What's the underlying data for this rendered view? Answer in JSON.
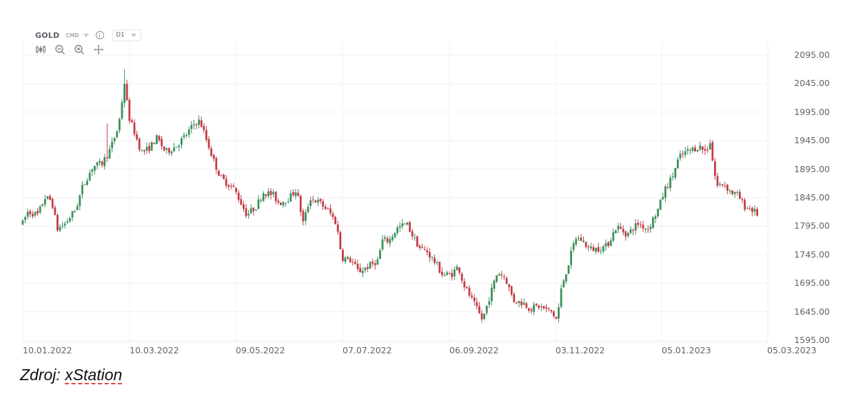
{
  "toolbar": {
    "symbol": "GOLD",
    "type_badge": "CMD",
    "timeframe": "D1",
    "tools": [
      "candles-type-icon",
      "zoom-out-icon",
      "zoom-in-icon",
      "pan-move-icon"
    ]
  },
  "caption": {
    "prefix": "Zdroj: ",
    "source": "xStation"
  },
  "colors": {
    "up": "#3a8f5c",
    "down": "#c43c44",
    "grid": "#f0f1f4",
    "axis_text": "#5f6368"
  },
  "chart_data": {
    "type": "candlestick",
    "title": "GOLD CMD D1",
    "xlabel": "",
    "ylabel": "",
    "ylim": [
      1595,
      2095
    ],
    "y_ticks": [
      "2095.00",
      "2045.00",
      "1995.00",
      "1945.00",
      "1895.00",
      "1845.00",
      "1795.00",
      "1745.00",
      "1695.00",
      "1645.00",
      "1595.00"
    ],
    "x_ticks": [
      "10.01.2022",
      "10.03.2022",
      "09.05.2022",
      "07.07.2022",
      "06.09.2022",
      "03.11.2022",
      "05.01.2023",
      "05.03.2023"
    ],
    "grid": true,
    "legend": "none",
    "approx_close_path": {
      "note": "approximate closing price path read from candles, x is horizontal pixel position",
      "x": [
        33,
        40,
        55,
        65,
        75,
        83,
        95,
        110,
        120,
        135,
        148,
        160,
        172,
        181,
        186,
        195,
        205,
        215,
        228,
        240,
        255,
        270,
        282,
        290,
        300,
        310,
        320,
        330,
        340,
        348,
        358,
        372,
        382,
        396,
        405,
        420,
        430,
        440,
        450,
        465,
        478,
        488,
        496,
        510,
        520,
        535,
        548,
        555,
        565,
        575,
        590,
        600,
        610,
        620,
        632,
        642,
        655,
        665,
        672,
        685,
        700,
        710,
        722,
        733,
        745,
        760,
        770,
        780,
        790,
        800,
        808,
        815,
        825,
        835,
        845,
        855,
        865,
        880,
        895,
        910,
        925,
        940,
        955,
        965,
        975,
        985,
        995,
        1005,
        1015,
        1025,
        1030,
        1035,
        1040,
        1050,
        1060,
        1070,
        1080,
        1090,
        1100
      ],
      "close": [
        1800,
        1820,
        1815,
        1845,
        1840,
        1790,
        1800,
        1825,
        1865,
        1900,
        1905,
        1930,
        1970,
        2050,
        1990,
        1960,
        1925,
        1930,
        1950,
        1925,
        1935,
        1955,
        1975,
        1980,
        1945,
        1910,
        1880,
        1870,
        1860,
        1840,
        1815,
        1830,
        1855,
        1850,
        1835,
        1845,
        1860,
        1800,
        1845,
        1835,
        1820,
        1800,
        1740,
        1735,
        1715,
        1725,
        1735,
        1770,
        1770,
        1790,
        1800,
        1775,
        1755,
        1750,
        1730,
        1710,
        1710,
        1725,
        1695,
        1665,
        1630,
        1670,
        1715,
        1705,
        1665,
        1660,
        1650,
        1655,
        1650,
        1645,
        1630,
        1690,
        1730,
        1775,
        1770,
        1755,
        1755,
        1760,
        1795,
        1780,
        1800,
        1790,
        1825,
        1860,
        1880,
        1915,
        1925,
        1930,
        1935,
        1925,
        1945,
        1900,
        1865,
        1870,
        1855,
        1850,
        1830,
        1825,
        1815
      ]
    },
    "notable": {
      "high": 2070,
      "high_near": "early March 2022",
      "low": 1615,
      "low_near": "late Sept / early Nov 2022",
      "last_close": 1812
    }
  }
}
